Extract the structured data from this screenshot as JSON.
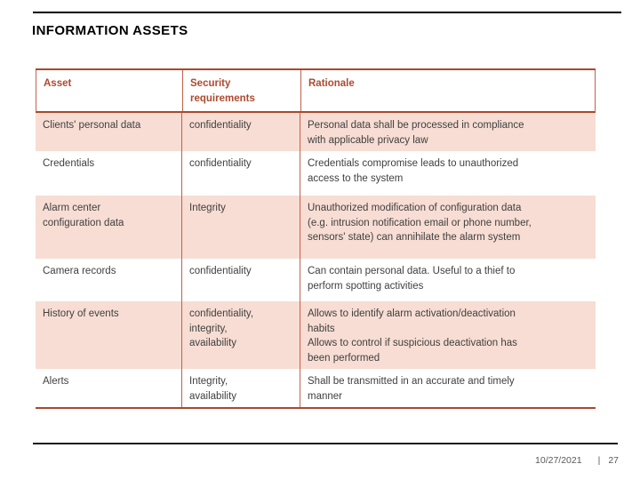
{
  "slide": {
    "title": "INFORMATION ASSETS",
    "footer": {
      "date": "10/27/2021",
      "separator": "|",
      "page_number": "27"
    },
    "accent_colors": {
      "border_dark": "#a8492c",
      "border_light": "#c4604a",
      "band_fill": "#f7ddd3",
      "header_text": "#ad4a2f",
      "body_text": "#404040",
      "footer_text": "#595959"
    }
  },
  "table": {
    "columns": [
      "Asset",
      "Security\nrequirements",
      "Rationale"
    ],
    "rows": [
      {
        "asset": "Clients' personal data",
        "security": "confidentiality",
        "rationale": "Personal data shall be processed in compliance\nwith applicable privacy law"
      },
      {
        "asset": "Credentials",
        "security": "confidentiality",
        "rationale": "Credentials compromise leads to unauthorized\naccess to the system"
      },
      {
        "asset": "Alarm center\nconfiguration data",
        "security": "Integrity",
        "rationale": "Unauthorized modification  of configuration data\n(e.g. intrusion notification email or phone number,\nsensors' state) can annihilate the alarm system"
      },
      {
        "asset": "Camera records",
        "security": "confidentiality",
        "rationale": "Can contain personal data. Useful to a thief to\nperform spotting activities"
      },
      {
        "asset": "History of events",
        "security": "confidentiality,\nintegrity,\navailability",
        "rationale": "Allows to identify alarm activation/deactivation\nhabits\nAllows to control if suspicious deactivation has\nbeen performed"
      },
      {
        "asset": "Alerts",
        "security": "Integrity,\navailability",
        "rationale": "Shall be transmitted in an accurate and timely\nmanner"
      }
    ]
  }
}
